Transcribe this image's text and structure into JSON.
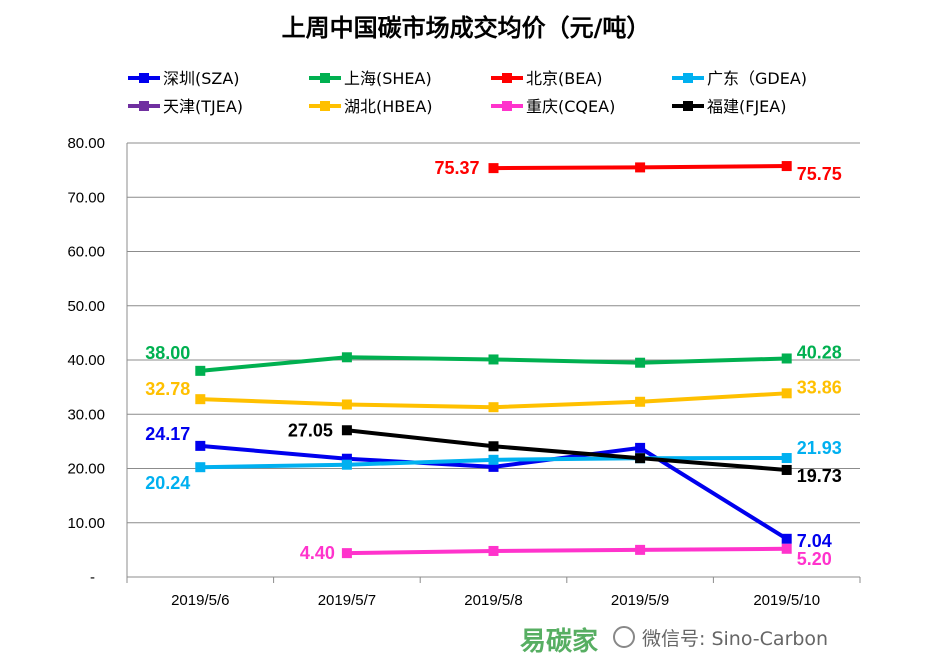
{
  "chart_data": {
    "type": "line",
    "title": "上周中国碳市场成交均价（元/吨）",
    "categories": [
      "2019/5/6",
      "2019/5/7",
      "2019/5/8",
      "2019/5/9",
      "2019/5/10"
    ],
    "ylim": [
      0,
      80
    ],
    "yticks": [
      "-",
      "10.00",
      "20.00",
      "30.00",
      "40.00",
      "50.00",
      "60.00",
      "70.00",
      "80.00"
    ],
    "grid": true,
    "legend_placement": "top",
    "series": [
      {
        "name": "深圳(SZA)",
        "color": "#0000EE",
        "values": [
          24.17,
          21.8,
          20.3,
          23.8,
          7.04
        ],
        "labels": [
          "24.17",
          null,
          null,
          null,
          "7.04"
        ]
      },
      {
        "name": "上海(SHEA)",
        "color": "#00B050",
        "values": [
          38.0,
          40.5,
          40.1,
          39.5,
          40.28
        ],
        "labels": [
          "38.00",
          null,
          null,
          null,
          "40.28"
        ]
      },
      {
        "name": "北京(BEA)",
        "color": "#FF0000",
        "values": [
          null,
          null,
          75.37,
          75.5,
          75.75
        ],
        "labels": [
          null,
          null,
          "75.37",
          null,
          "75.75"
        ]
      },
      {
        "name": "广东（GDEA)",
        "color": "#00B0F0",
        "values": [
          20.24,
          20.7,
          21.6,
          21.9,
          21.93
        ],
        "labels": [
          "20.24",
          null,
          null,
          null,
          "21.93"
        ]
      },
      {
        "name": "天津(TJEA)",
        "color": "#7030A0",
        "values": [
          null,
          null,
          null,
          null,
          null
        ],
        "labels": [
          null,
          null,
          null,
          null,
          null
        ]
      },
      {
        "name": "湖北(HBEA)",
        "color": "#FFC000",
        "values": [
          32.78,
          31.8,
          31.3,
          32.3,
          33.86
        ],
        "labels": [
          "32.78",
          null,
          null,
          null,
          "33.86"
        ]
      },
      {
        "name": "重庆(CQEA)",
        "color": "#FF33CC",
        "values": [
          null,
          4.4,
          4.8,
          5.0,
          5.2
        ],
        "labels": [
          null,
          "4.40",
          null,
          null,
          "5.20"
        ]
      },
      {
        "name": "福建(FJEA)",
        "color": "#000000",
        "values": [
          null,
          27.05,
          24.1,
          21.9,
          19.73
        ],
        "labels": [
          null,
          "27.05",
          null,
          null,
          "19.73"
        ]
      }
    ]
  },
  "watermark": {
    "text": "微信号: Sino-Carbon",
    "logo": "易碳家"
  }
}
